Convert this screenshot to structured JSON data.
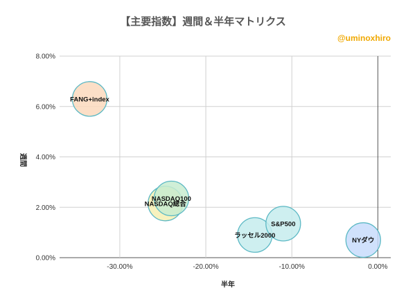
{
  "title": "【主要指数】週間＆半年マトリクス",
  "credit": "@uminoxhiro",
  "chart_data": {
    "type": "scatter",
    "title": "【主要指数】週間＆半年マトリクス",
    "xlabel": "半年",
    "ylabel": "週間",
    "xlim": [
      -37,
      1.5
    ],
    "ylim": [
      0,
      8
    ],
    "x_ticks": [
      -30,
      -20,
      -10,
      0
    ],
    "x_tick_labels": [
      "-30.00%",
      "-20.00%",
      "-10.00%",
      "0.00%"
    ],
    "y_ticks": [
      0,
      2,
      4,
      6,
      8
    ],
    "y_tick_labels": [
      "0.00%",
      "2.00%",
      "4.00%",
      "6.00%",
      "8.00%"
    ],
    "grid": true,
    "points": [
      {
        "label": "FANG+index",
        "x": -33.5,
        "y": 6.3,
        "color": "#fbd9bd"
      },
      {
        "label": "NASDAQ総合",
        "x": -24.7,
        "y": 2.15,
        "color": "#f6f0b3"
      },
      {
        "label": "NASDAQ100",
        "x": -24.0,
        "y": 2.35,
        "color": "#c8ecd0"
      },
      {
        "label": "ラッセル2000",
        "x": -14.3,
        "y": 0.9,
        "color": "#c6eced"
      },
      {
        "label": "S&P500",
        "x": -11.0,
        "y": 1.35,
        "color": "#c6eced"
      },
      {
        "label": "NYダウ",
        "x": -1.7,
        "y": 0.7,
        "color": "#c8dcfb"
      }
    ]
  }
}
